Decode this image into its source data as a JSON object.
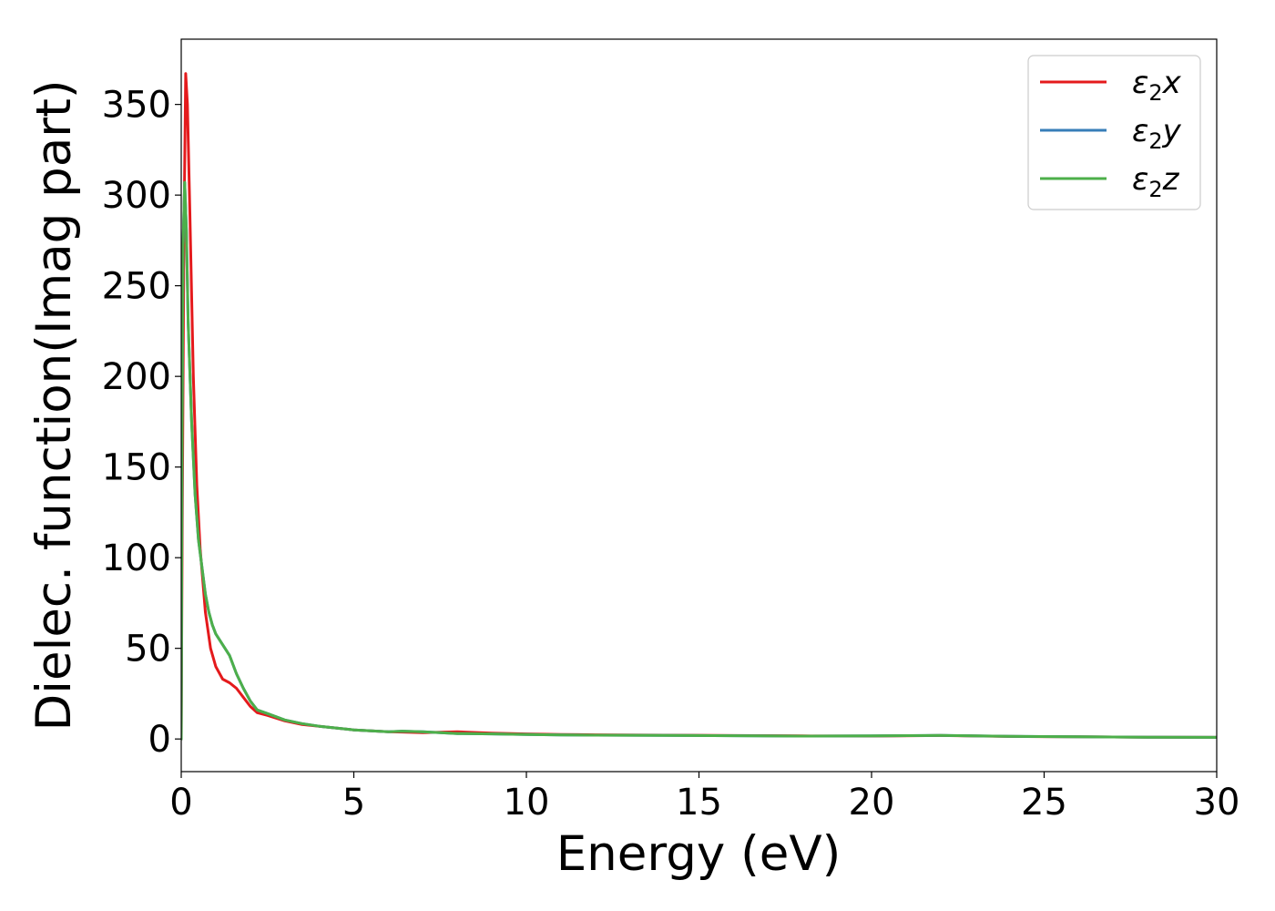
{
  "chart_data": {
    "type": "line",
    "xlabel": "Energy (eV)",
    "ylabel": "Dielec. function(Imag part)",
    "xlim": [
      0,
      30
    ],
    "ylim": [
      -18,
      386
    ],
    "xticks": [
      0,
      5,
      10,
      15,
      20,
      25,
      30
    ],
    "yticks": [
      0,
      50,
      100,
      150,
      200,
      250,
      300,
      350
    ],
    "grid": false,
    "legend_position": "top-right",
    "series": [
      {
        "name": "ε₂x",
        "legend_base": "ε",
        "legend_sub": "2",
        "legend_suffix": "x",
        "color": "#e41a1c",
        "x": [
          0,
          0.03,
          0.08,
          0.13,
          0.18,
          0.25,
          0.35,
          0.45,
          0.55,
          0.7,
          0.85,
          1.0,
          1.2,
          1.4,
          1.6,
          1.8,
          2.0,
          2.2,
          2.5,
          3.0,
          3.5,
          4.0,
          5.0,
          6.0,
          6.4,
          7.0,
          8.0,
          9.0,
          10.0,
          11.0,
          12.0,
          14.0,
          16.0,
          18.0,
          20.0,
          22.0,
          24.0,
          26.0,
          28.0,
          30.0
        ],
        "y": [
          0,
          120,
          280,
          367,
          350,
          290,
          200,
          140,
          105,
          70,
          50,
          40,
          33,
          31,
          28,
          23,
          18,
          14.5,
          13,
          10,
          8,
          7,
          5,
          4,
          3.8,
          3.5,
          4,
          3.2,
          2.8,
          2.5,
          2.3,
          2.1,
          1.9,
          1.7,
          1.6,
          1.9,
          1.4,
          1.2,
          1.0,
          0.9
        ]
      },
      {
        "name": "ε₂y",
        "legend_base": "ε",
        "legend_sub": "2",
        "legend_suffix": "y",
        "color": "#377eb8",
        "x": [
          0,
          0.02,
          0.05,
          0.1,
          0.15,
          0.2,
          0.3,
          0.4,
          0.5,
          0.6,
          0.7,
          0.8,
          0.9,
          1.0,
          1.2,
          1.4,
          1.6,
          1.8,
          2.0,
          2.2,
          2.5,
          3.0,
          3.5,
          4.0,
          5.0,
          6.0,
          6.4,
          7.0,
          8.0,
          9.0,
          10.0,
          11.0,
          12.0,
          14.0,
          16.0,
          18.0,
          20.0,
          22.0,
          24.0,
          26.0,
          28.0,
          30.0
        ],
        "y": [
          0,
          150,
          270,
          307,
          280,
          230,
          175,
          135,
          110,
          95,
          80,
          70,
          63,
          58,
          52,
          46,
          36,
          28,
          21,
          16,
          14,
          10.5,
          8.5,
          7,
          5,
          4,
          4.3,
          4,
          3,
          2.8,
          2.5,
          2.2,
          2.1,
          2.0,
          1.8,
          1.6,
          1.7,
          2.0,
          1.5,
          1.2,
          1.0,
          0.9
        ]
      },
      {
        "name": "ε₂z",
        "legend_base": "ε",
        "legend_sub": "2",
        "legend_suffix": "z",
        "color": "#4daf4a",
        "x": [
          0,
          0.02,
          0.05,
          0.1,
          0.15,
          0.2,
          0.3,
          0.4,
          0.5,
          0.6,
          0.7,
          0.8,
          0.9,
          1.0,
          1.2,
          1.4,
          1.6,
          1.8,
          2.0,
          2.2,
          2.5,
          3.0,
          3.5,
          4.0,
          5.0,
          6.0,
          6.4,
          7.0,
          8.0,
          9.0,
          10.0,
          11.0,
          12.0,
          14.0,
          16.0,
          18.0,
          20.0,
          22.0,
          24.0,
          26.0,
          28.0,
          30.0
        ],
        "y": [
          0,
          150,
          270,
          307,
          280,
          230,
          175,
          135,
          110,
          95,
          80,
          70,
          63,
          58,
          52,
          46,
          36,
          28,
          21,
          16,
          14,
          10.5,
          8.5,
          7,
          5,
          4,
          4.3,
          4,
          3,
          2.8,
          2.5,
          2.2,
          2.1,
          2.0,
          1.8,
          1.6,
          1.7,
          2.0,
          1.5,
          1.2,
          1.0,
          0.9
        ]
      }
    ]
  }
}
